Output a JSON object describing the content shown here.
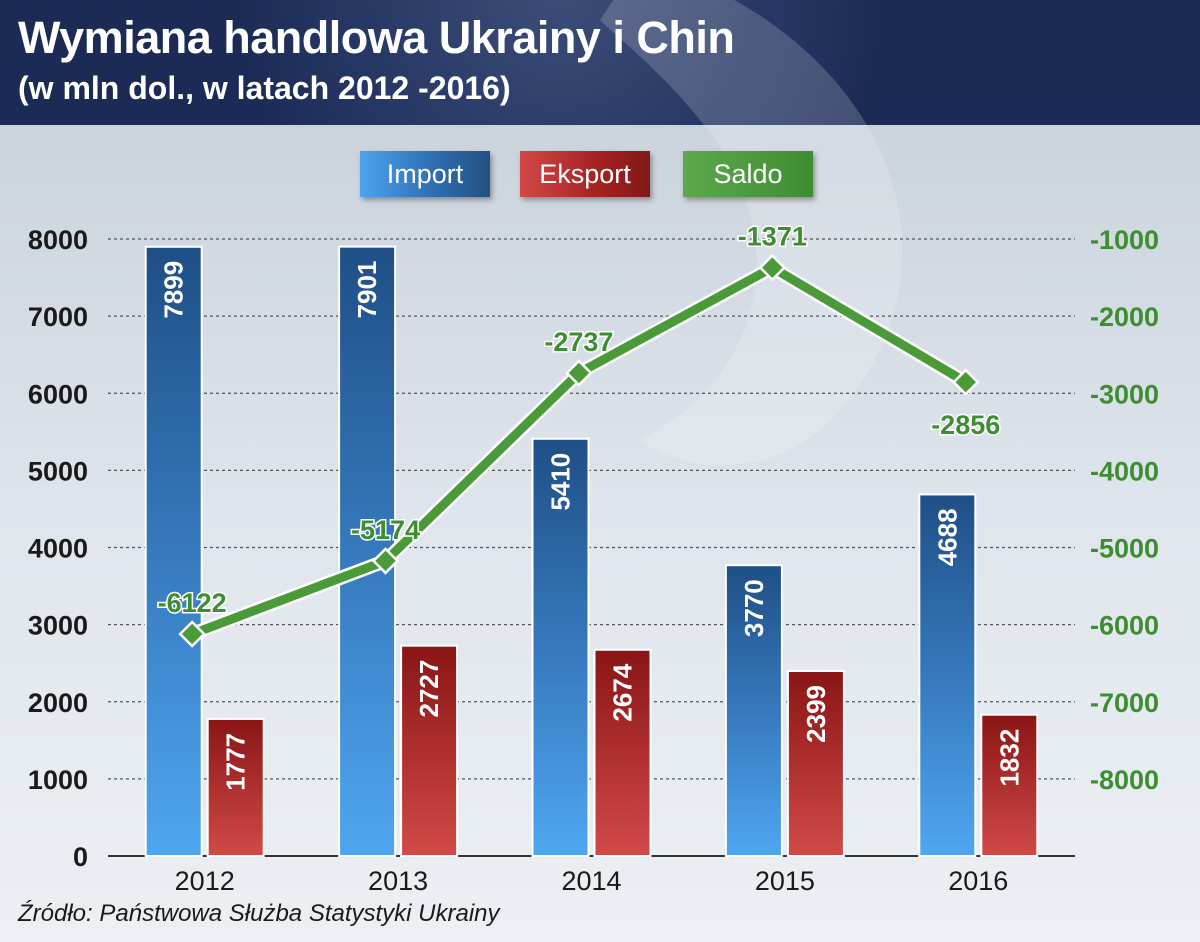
{
  "header": {
    "title": "Wymiana handlowa Ukrainy i Chin",
    "subtitle": "(w mln dol., w latach 2012 -2016)"
  },
  "legend": {
    "import": "Import",
    "export": "Eksport",
    "saldo": "Saldo"
  },
  "source": "Źródło: Państwowa Służba Statystyki Ukrainy",
  "colors": {
    "import": "#3b86d0",
    "export": "#b22a2a",
    "saldo": "#4a9a3a",
    "header": "#1c2b55"
  },
  "chart_data": {
    "type": "bar",
    "title": "Wymiana handlowa Ukrainy i Chin",
    "subtitle": "(w mln dol., w latach 2012 -2016)",
    "categories": [
      "2012",
      "2013",
      "2014",
      "2015",
      "2016"
    ],
    "series": [
      {
        "name": "Import",
        "type": "bar",
        "axis": "left",
        "values": [
          7899,
          7901,
          5410,
          3770,
          4688
        ]
      },
      {
        "name": "Eksport",
        "type": "bar",
        "axis": "left",
        "values": [
          1777,
          2727,
          2674,
          2399,
          1832
        ]
      },
      {
        "name": "Saldo",
        "type": "line",
        "axis": "right",
        "values": [
          -6122,
          -5174,
          -2737,
          -1371,
          -2856
        ]
      }
    ],
    "ylim": [
      0,
      8000
    ],
    "yticks": [
      0,
      1000,
      2000,
      3000,
      4000,
      5000,
      6000,
      7000,
      8000
    ],
    "y2lim": [
      -9000,
      -1000
    ],
    "y2ticks": [
      -8000,
      -7000,
      -6000,
      -5000,
      -4000,
      -3000,
      -2000,
      -1000
    ],
    "grid": "horizontal-dashed",
    "legend_position": "top-center"
  }
}
